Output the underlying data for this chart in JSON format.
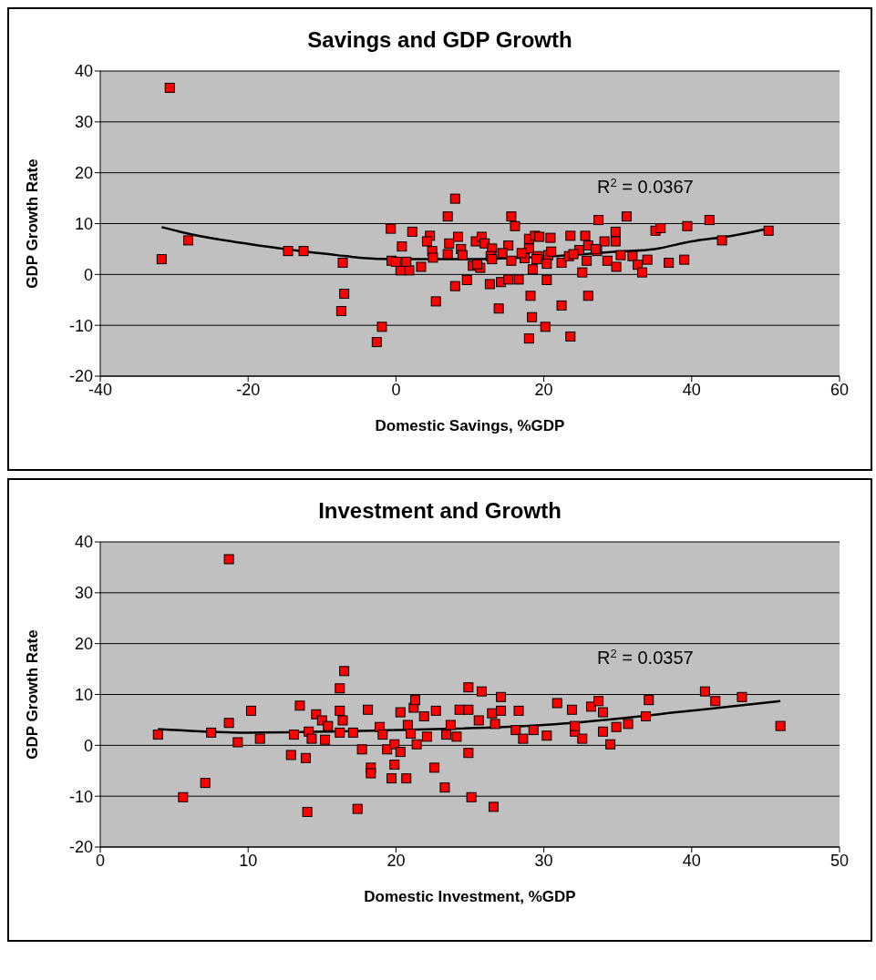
{
  "chart_data": [
    {
      "type": "scatter",
      "title": "Savings and GDP Growth",
      "xlabel": "Domestic Savings, %GDP",
      "ylabel": "GDP Growth Rate",
      "xlim": [
        -40,
        60
      ],
      "xticks": [
        -40,
        -20,
        0,
        20,
        40,
        60
      ],
      "ylim": [
        -20,
        40
      ],
      "yticks": [
        -20,
        -10,
        0,
        10,
        20,
        30,
        40
      ],
      "grid": "y",
      "marker": "square",
      "annotations": [
        "R$^{2}$ = 0.0367"
      ],
      "series": [
        {
          "color": "#ff0000",
          "x": [
            -30.6,
            -31.7,
            -28.1,
            -14.6,
            -12.5,
            -7.2,
            -7.0,
            -7.4,
            -1.9,
            -2.6,
            -0.7,
            -0.6,
            8.0,
            7.0,
            2.2,
            4.6,
            4.2,
            0.8,
            4.9,
            3.4,
            0.6,
            1.8,
            0.0,
            1.4,
            5.4,
            8.0,
            9.6,
            7.0,
            7.2,
            8.4,
            8.8,
            10.4,
            10.8,
            11.6,
            12.0,
            13.0,
            12.8,
            11.4,
            12.7,
            13.9,
            14.2,
            15.2,
            16.6,
            15.6,
            16.1,
            15.2,
            14.4,
            15.6,
            17.4,
            18.0,
            18.8,
            19.4,
            20.9,
            18.0,
            19.2,
            20.6,
            20.4,
            18.5,
            18.2,
            18.4,
            18.0,
            20.2,
            20.4,
            22.4,
            23.6,
            22.4,
            23.4,
            23.6,
            24.8,
            25.6,
            26.0,
            25.2,
            26.0,
            25.8,
            27.4,
            28.2,
            27.2,
            28.6,
            29.7,
            29.7,
            30.4,
            29.8,
            31.2,
            32.0,
            32.7,
            33.3,
            34.0,
            35.1,
            35.8,
            36.9,
            39.0,
            39.4,
            42.4,
            44.1,
            50.4,
            5.0,
            9.0,
            13.0,
            17.0,
            21.0,
            24.0,
            27.0,
            11.0,
            19.0
          ],
          "values": [
            36.7,
            3.0,
            6.7,
            4.6,
            4.6,
            2.3,
            -3.8,
            -7.2,
            -10.3,
            -13.3,
            9.0,
            2.7,
            14.9,
            11.4,
            8.4,
            7.6,
            6.5,
            5.5,
            4.6,
            1.5,
            0.8,
            0.8,
            2.5,
            2.5,
            -5.3,
            -2.3,
            -1.1,
            4.0,
            6.1,
            7.4,
            5.0,
            1.7,
            6.5,
            7.4,
            6.1,
            5.1,
            3.6,
            1.3,
            -1.9,
            -6.7,
            -1.5,
            -1.0,
            -1.0,
            11.4,
            9.5,
            5.7,
            4.2,
            2.7,
            3.2,
            7.0,
            7.6,
            7.4,
            7.2,
            5.1,
            3.6,
            3.8,
            2.1,
            1.0,
            -4.2,
            -8.4,
            -12.6,
            -10.3,
            -1.1,
            -6.1,
            -12.2,
            2.3,
            3.6,
            7.6,
            4.8,
            7.6,
            5.7,
            0.4,
            -4.2,
            2.7,
            10.7,
            6.5,
            4.6,
            2.7,
            6.5,
            8.4,
            3.8,
            1.5,
            11.4,
            3.6,
            1.9,
            0.4,
            2.9,
            8.6,
            9.1,
            2.3,
            2.9,
            9.5,
            10.7,
            6.7,
            8.6,
            3.3,
            3.8,
            3.0,
            4.2,
            4.5,
            4.0,
            5.0,
            2.0,
            3.0
          ]
        },
        {
          "type": "line",
          "color": "#000000",
          "marker": "none",
          "x": [
            -31.7,
            -28,
            -20,
            -14,
            -8,
            -5,
            0,
            10,
            20,
            30,
            35,
            40,
            45,
            50.4
          ],
          "values": [
            9.3,
            8,
            6,
            4.8,
            3.8,
            3.3,
            3,
            3,
            3.5,
            4.5,
            5,
            6.5,
            7.5,
            9
          ]
        }
      ]
    },
    {
      "type": "scatter",
      "title": "Investment and Growth",
      "xlabel": "Domestic Investment, %GDP",
      "ylabel": "GDP Growth Rate",
      "xlim": [
        0,
        50
      ],
      "xticks": [
        0,
        10,
        20,
        30,
        40,
        50
      ],
      "ylim": [
        -20,
        40
      ],
      "yticks": [
        -20,
        -10,
        0,
        10,
        20,
        30,
        40
      ],
      "grid": "y",
      "marker": "square",
      "annotations": [
        "R$^{2}$ = 0.0357"
      ],
      "series": [
        {
          "color": "#ff0000",
          "x": [
            3.9,
            5.6,
            7.1,
            7.5,
            8.7,
            8.7,
            9.3,
            10.2,
            10.8,
            12.9,
            13.5,
            13.1,
            13.9,
            14.0,
            16.5,
            16.2,
            14.6,
            15.0,
            16.2,
            16.4,
            15.4,
            14.1,
            14.3,
            15.2,
            16.2,
            17.1,
            17.7,
            18.1,
            18.3,
            18.3,
            17.4,
            18.9,
            19.1,
            19.4,
            19.9,
            20.3,
            19.9,
            19.7,
            20.7,
            20.3,
            21.2,
            21.3,
            20.8,
            21.0,
            21.4,
            21.9,
            22.1,
            22.7,
            22.6,
            23.3,
            23.4,
            23.7,
            24.3,
            24.1,
            24.9,
            24.9,
            24.9,
            25.1,
            25.8,
            25.6,
            26.5,
            26.6,
            27.1,
            27.1,
            26.7,
            28.3,
            28.1,
            28.6,
            29.3,
            30.2,
            30.9,
            31.9,
            33.2,
            33.7,
            34.0,
            32.1,
            32.6,
            32.1,
            34.0,
            34.5,
            34.9,
            35.7,
            36.9,
            37.1,
            40.9,
            41.6,
            43.4,
            46.0
          ],
          "values": [
            2.1,
            -10.2,
            -7.4,
            2.5,
            4.4,
            36.6,
            0.6,
            6.8,
            1.3,
            -1.9,
            7.8,
            2.1,
            -2.5,
            -13.1,
            14.6,
            11.2,
            6.1,
            4.9,
            6.8,
            4.9,
            3.8,
            2.7,
            1.3,
            1.1,
            2.5,
            2.5,
            -0.8,
            7.0,
            -4.4,
            -5.5,
            -12.5,
            3.6,
            2.1,
            -0.8,
            0.2,
            -1.3,
            -3.8,
            -6.5,
            -6.5,
            6.5,
            7.4,
            8.9,
            4.0,
            2.3,
            0.2,
            5.7,
            1.7,
            6.8,
            -4.4,
            -8.3,
            2.1,
            4.0,
            7.0,
            1.7,
            11.4,
            7.0,
            -1.5,
            -10.2,
            10.6,
            4.9,
            6.3,
            -12.1,
            9.5,
            6.8,
            4.2,
            6.8,
            3.0,
            1.3,
            3.0,
            1.9,
            8.3,
            7.0,
            7.6,
            8.7,
            6.5,
            2.7,
            1.3,
            3.8,
            2.7,
            0.2,
            3.6,
            4.2,
            5.7,
            8.9,
            10.6,
            8.7,
            9.5,
            3.8
          ]
        },
        {
          "type": "line",
          "color": "#000000",
          "marker": "none",
          "x": [
            3.9,
            10,
            20,
            30,
            40,
            46
          ],
          "values": [
            3.2,
            2.5,
            3.0,
            4.0,
            6.8,
            8.7
          ]
        }
      ]
    }
  ]
}
